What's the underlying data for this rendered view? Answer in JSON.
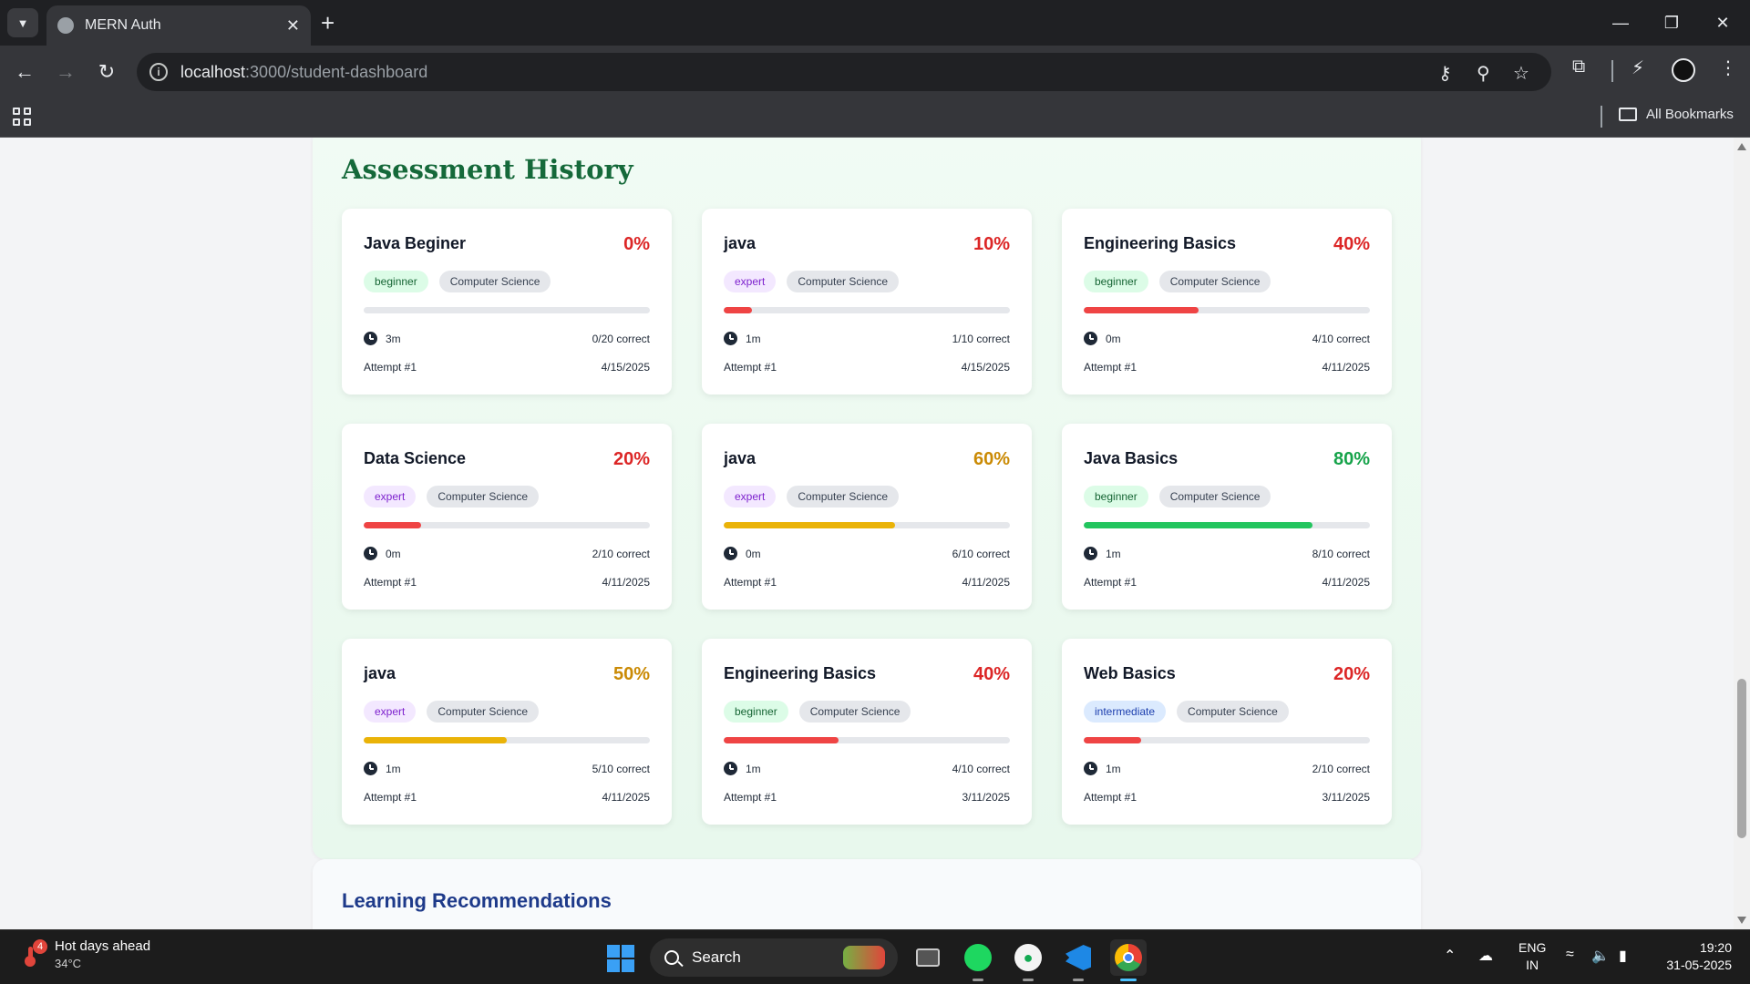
{
  "browser": {
    "tab_title": "MERN Auth",
    "url_host": "localhost",
    "url_path": ":3000/student-dashboard",
    "bookmarks_label": "All Bookmarks"
  },
  "history": {
    "title": "Assessment History",
    "cards": [
      {
        "name": "Java Beginer",
        "score": "0%",
        "score_value": 0,
        "score_color": "#dc2626",
        "level": "beginner",
        "category": "Computer Science",
        "duration": "3m",
        "correct": "0/20 correct",
        "attempt": "Attempt #1",
        "date": "4/15/2025",
        "bar_color": "#ef4444"
      },
      {
        "name": "java",
        "score": "10%",
        "score_value": 10,
        "score_color": "#dc2626",
        "level": "expert",
        "category": "Computer Science",
        "duration": "1m",
        "correct": "1/10 correct",
        "attempt": "Attempt #1",
        "date": "4/15/2025",
        "bar_color": "#ef4444"
      },
      {
        "name": "Engineering Basics",
        "score": "40%",
        "score_value": 40,
        "score_color": "#dc2626",
        "level": "beginner",
        "category": "Computer Science",
        "duration": "0m",
        "correct": "4/10 correct",
        "attempt": "Attempt #1",
        "date": "4/11/2025",
        "bar_color": "#ef4444"
      },
      {
        "name": "Data Science",
        "score": "20%",
        "score_value": 20,
        "score_color": "#dc2626",
        "level": "expert",
        "category": "Computer Science",
        "duration": "0m",
        "correct": "2/10 correct",
        "attempt": "Attempt #1",
        "date": "4/11/2025",
        "bar_color": "#ef4444"
      },
      {
        "name": "java",
        "score": "60%",
        "score_value": 60,
        "score_color": "#ca8a04",
        "level": "expert",
        "category": "Computer Science",
        "duration": "0m",
        "correct": "6/10 correct",
        "attempt": "Attempt #1",
        "date": "4/11/2025",
        "bar_color": "#eab308"
      },
      {
        "name": "Java Basics",
        "score": "80%",
        "score_value": 80,
        "score_color": "#16a34a",
        "level": "beginner",
        "category": "Computer Science",
        "duration": "1m",
        "correct": "8/10 correct",
        "attempt": "Attempt #1",
        "date": "4/11/2025",
        "bar_color": "#22c55e"
      },
      {
        "name": "java",
        "score": "50%",
        "score_value": 50,
        "score_color": "#ca8a04",
        "level": "expert",
        "category": "Computer Science",
        "duration": "1m",
        "correct": "5/10 correct",
        "attempt": "Attempt #1",
        "date": "4/11/2025",
        "bar_color": "#eab308"
      },
      {
        "name": "Engineering Basics",
        "score": "40%",
        "score_value": 40,
        "score_color": "#dc2626",
        "level": "beginner",
        "category": "Computer Science",
        "duration": "1m",
        "correct": "4/10 correct",
        "attempt": "Attempt #1",
        "date": "3/11/2025",
        "bar_color": "#ef4444"
      },
      {
        "name": "Web Basics",
        "score": "20%",
        "score_value": 20,
        "score_color": "#dc2626",
        "level": "intermediate",
        "category": "Computer Science",
        "duration": "1m",
        "correct": "2/10 correct",
        "attempt": "Attempt #1",
        "date": "3/11/2025",
        "bar_color": "#ef4444"
      }
    ]
  },
  "level_styles": {
    "beginner": {
      "bg": "#dcfce7",
      "fg": "#166534"
    },
    "expert": {
      "bg": "#f3e8ff",
      "fg": "#7e22ce"
    },
    "intermediate": {
      "bg": "#dbeafe",
      "fg": "#1e40af"
    }
  },
  "recommendations": {
    "title": "Learning Recommendations"
  },
  "taskbar": {
    "weather_title": "Hot days ahead",
    "weather_temp": "34°C",
    "weather_badge": "4",
    "search_label": "Search",
    "lang_top": "ENG",
    "lang_bottom": "IN",
    "time": "19:20",
    "date": "31-05-2025"
  }
}
